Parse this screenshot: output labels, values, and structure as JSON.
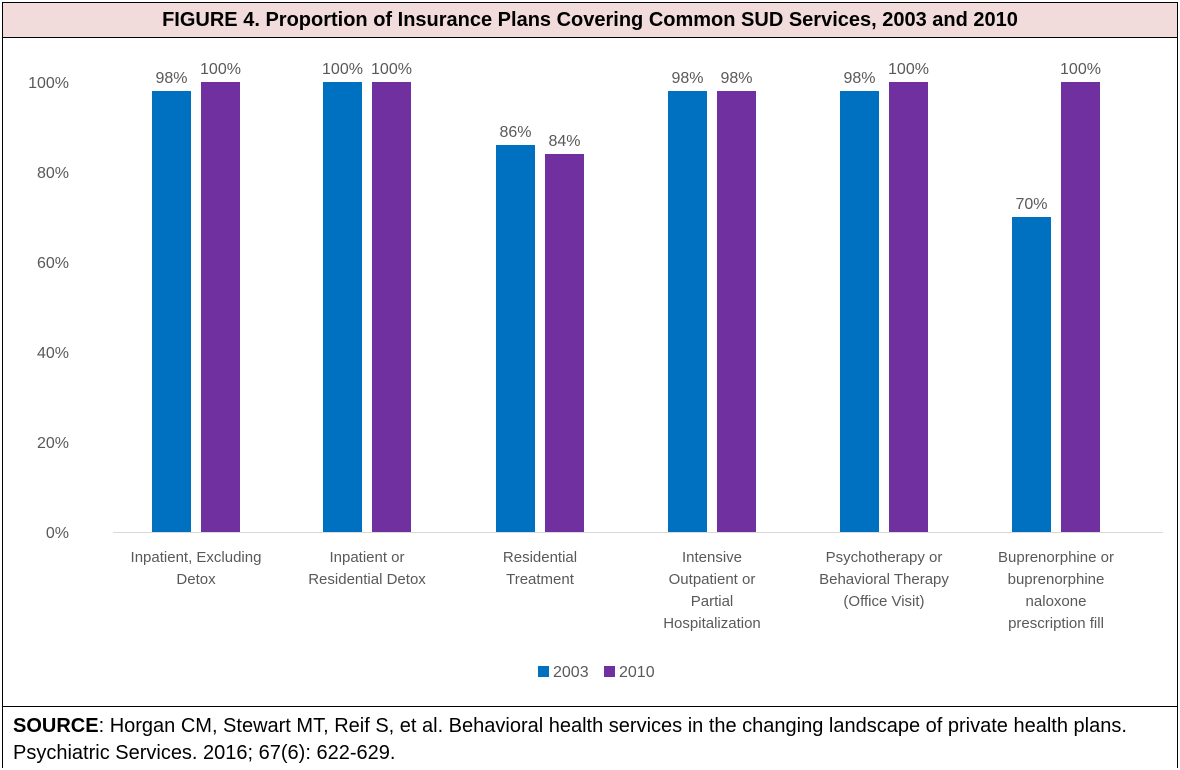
{
  "title": "FIGURE 4. Proportion of Insurance Plans Covering Common SUD Services, 2003 and 2010",
  "source_label": "SOURCE",
  "source_text": ":  Horgan CM, Stewart MT, Reif S, et al. Behavioral health services in the changing landscape of private health plans. Psychiatric Services. 2016; 67(6): 622-629.",
  "colors": {
    "s2003": "#0070c0",
    "s2010": "#7030a0"
  },
  "chart_data": {
    "type": "bar",
    "categories": [
      [
        "Inpatient, Excluding",
        "Detox"
      ],
      [
        "Inpatient or",
        "Residential Detox"
      ],
      [
        "Residential",
        "Treatment"
      ],
      [
        "Intensive",
        "Outpatient or",
        "Partial",
        "Hospitalization"
      ],
      [
        "Psychotherapy or",
        "Behavioral Therapy",
        "(Office Visit)"
      ],
      [
        "Buprenorphine or",
        "buprenorphine",
        "naloxone",
        "prescription fill"
      ]
    ],
    "series": [
      {
        "name": "2003",
        "values": [
          98,
          100,
          86,
          98,
          98,
          70
        ],
        "labels": [
          "98%",
          "100%",
          "86%",
          "98%",
          "98%",
          "70%"
        ]
      },
      {
        "name": "2010",
        "values": [
          100,
          100,
          84,
          98,
          100,
          100
        ],
        "labels": [
          "100%",
          "100%",
          "84%",
          "98%",
          "100%",
          "100%"
        ]
      }
    ],
    "ylim": [
      0,
      100
    ],
    "yticks": [
      "0%",
      "20%",
      "40%",
      "60%",
      "80%",
      "100%"
    ],
    "ytick_values": [
      0,
      20,
      40,
      60,
      80,
      100
    ],
    "grid": false,
    "legend_position": "bottom"
  }
}
